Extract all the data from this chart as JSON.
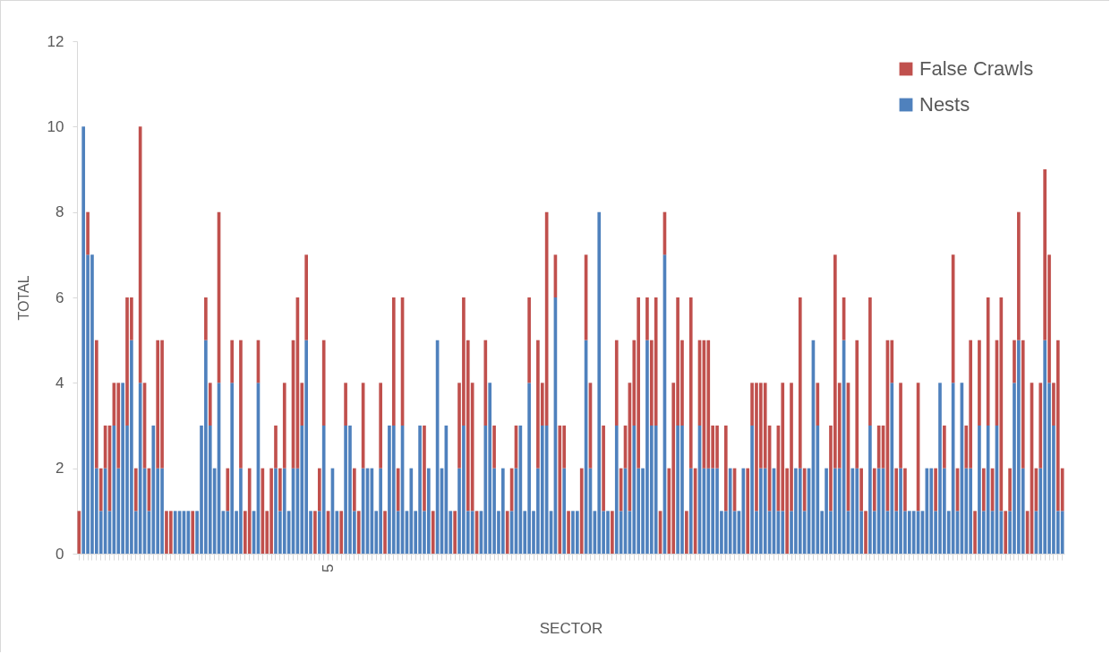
{
  "chart_data": {
    "type": "bar",
    "stacked": true,
    "xlabel": "SECTOR",
    "ylabel": "TOTAL",
    "ylim": [
      0,
      12
    ],
    "yticks": [
      0,
      2,
      4,
      6,
      8,
      10,
      12
    ],
    "grid": false,
    "legend": "top right",
    "categories": [
      null,
      null,
      null,
      null,
      null,
      null,
      null,
      null,
      null,
      null,
      null,
      null,
      null,
      null,
      null,
      null,
      null,
      null,
      null,
      null,
      null,
      null,
      null,
      null,
      null,
      null,
      null,
      null,
      null,
      null,
      null,
      null,
      null,
      null,
      null,
      null,
      null,
      null,
      null,
      null,
      null,
      null,
      null,
      null,
      null,
      null,
      null,
      null,
      null,
      null,
      null,
      null,
      null,
      null,
      null,
      null,
      null,
      "5",
      null,
      null,
      null,
      null,
      null,
      null,
      null,
      null,
      null,
      null,
      null,
      null,
      null,
      null,
      null,
      null,
      null,
      null,
      null,
      null,
      null,
      null,
      null,
      null,
      null,
      null,
      null,
      null,
      null,
      null,
      null,
      null,
      null,
      null,
      null,
      null,
      null,
      null,
      null,
      null,
      null,
      null,
      null,
      null,
      null,
      null,
      null,
      null,
      null,
      null,
      null,
      null,
      null,
      null,
      null,
      null,
      null,
      null,
      null,
      null,
      null,
      null,
      null,
      null,
      null,
      null,
      null,
      null,
      null,
      null,
      null,
      null,
      null,
      null,
      null,
      null,
      null,
      null,
      null,
      null,
      null,
      null,
      null,
      null,
      null,
      null,
      null,
      null,
      null,
      null,
      null,
      null,
      null,
      null,
      null,
      null,
      null,
      null,
      null,
      null,
      null,
      null,
      null,
      null,
      null,
      null,
      null,
      null,
      null,
      null,
      null,
      null,
      null,
      null,
      null,
      null,
      null,
      null,
      null,
      null,
      null,
      null,
      null,
      null,
      null,
      null,
      null,
      null,
      null,
      null,
      null,
      null,
      null,
      null,
      null,
      null,
      null,
      null,
      null,
      null,
      null,
      null,
      null,
      null,
      null,
      null,
      null,
      null,
      null,
      null,
      null,
      null,
      null,
      null,
      null,
      null,
      null,
      null,
      null,
      null,
      null,
      null,
      null,
      null,
      null,
      null,
      null,
      null
    ],
    "series": [
      {
        "name": "Nests",
        "color": "#4f81bd",
        "values": [
          0,
          10,
          7,
          7,
          2,
          1,
          2,
          1,
          3,
          2,
          4,
          3,
          5,
          1,
          4,
          2,
          1,
          3,
          2,
          2,
          0,
          0,
          1,
          1,
          1,
          1,
          0,
          1,
          3,
          5,
          3,
          2,
          4,
          1,
          1,
          4,
          1,
          2,
          0,
          0,
          1,
          4,
          0,
          0,
          0,
          2,
          1,
          2,
          1,
          2,
          2,
          3,
          5,
          1,
          0,
          1,
          3,
          0,
          2,
          1,
          0,
          3,
          3,
          1,
          0,
          2,
          2,
          2,
          1,
          2,
          0,
          3,
          3,
          1,
          3,
          1,
          2,
          1,
          3,
          1,
          2,
          0,
          5,
          2,
          3,
          1,
          0,
          2,
          3,
          1,
          1,
          0,
          1,
          3,
          4,
          2,
          1,
          2,
          0,
          1,
          2,
          3,
          1,
          4,
          1,
          2,
          3,
          3,
          1,
          6,
          0,
          2,
          0,
          1,
          1,
          0,
          5,
          2,
          1,
          8,
          1,
          1,
          0,
          3,
          1,
          2,
          1,
          3,
          2,
          2,
          5,
          3,
          3,
          0,
          7,
          0,
          0,
          3,
          3,
          0,
          2,
          0,
          3,
          2,
          2,
          2,
          2,
          1,
          1,
          2,
          1,
          1,
          2,
          0,
          3,
          1,
          2,
          2,
          1,
          2,
          1,
          1,
          0,
          1,
          2,
          2,
          1,
          2,
          5,
          3,
          1,
          2,
          1,
          2,
          2,
          5,
          1,
          2,
          2,
          1,
          0,
          3,
          1,
          2,
          2,
          1,
          4,
          1,
          2,
          1,
          1,
          1,
          1,
          1,
          2,
          2,
          1,
          4,
          2,
          1,
          4,
          1,
          4,
          2,
          2,
          0,
          3,
          1,
          3,
          1,
          3,
          1,
          0,
          1,
          4,
          5,
          2,
          0,
          0,
          1,
          2,
          5,
          4,
          3,
          1,
          1
        ]
      },
      {
        "name": "False Crawls",
        "color": "#c0504d",
        "values": [
          1,
          0,
          1,
          0,
          3,
          1,
          1,
          2,
          1,
          2,
          0,
          3,
          1,
          1,
          6,
          2,
          1,
          0,
          3,
          3,
          1,
          1,
          0,
          0,
          0,
          0,
          1,
          0,
          0,
          1,
          1,
          0,
          4,
          0,
          1,
          1,
          0,
          3,
          1,
          2,
          0,
          1,
          2,
          1,
          2,
          1,
          1,
          2,
          0,
          3,
          4,
          1,
          2,
          0,
          1,
          1,
          2,
          1,
          0,
          0,
          1,
          1,
          0,
          1,
          1,
          2,
          0,
          0,
          0,
          2,
          1,
          0,
          3,
          1,
          3,
          0,
          0,
          0,
          0,
          2,
          0,
          1,
          0,
          0,
          0,
          0,
          1,
          2,
          3,
          4,
          3,
          1,
          0,
          2,
          0,
          1,
          0,
          0,
          1,
          1,
          1,
          0,
          0,
          2,
          0,
          3,
          1,
          5,
          0,
          1,
          3,
          1,
          1,
          0,
          0,
          2,
          2,
          2,
          0,
          0,
          2,
          0,
          1,
          2,
          1,
          1,
          3,
          2,
          4,
          0,
          1,
          2,
          3,
          1,
          1,
          2,
          4,
          3,
          2,
          1,
          4,
          2,
          2,
          3,
          3,
          1,
          1,
          0,
          2,
          0,
          1,
          0,
          0,
          2,
          1,
          3,
          2,
          2,
          2,
          0,
          2,
          3,
          2,
          3,
          0,
          4,
          1,
          0,
          0,
          1,
          0,
          0,
          2,
          5,
          2,
          1,
          3,
          0,
          3,
          1,
          1,
          3,
          1,
          1,
          1,
          4,
          1,
          1,
          2,
          1,
          0,
          0,
          3,
          0,
          0,
          0,
          1,
          0,
          1,
          0,
          3,
          1,
          0,
          1,
          3,
          1,
          2,
          1,
          3,
          1,
          2,
          5,
          1,
          1,
          1,
          3,
          3,
          1,
          4,
          1,
          2,
          4,
          3,
          1,
          4,
          1
        ]
      }
    ]
  }
}
